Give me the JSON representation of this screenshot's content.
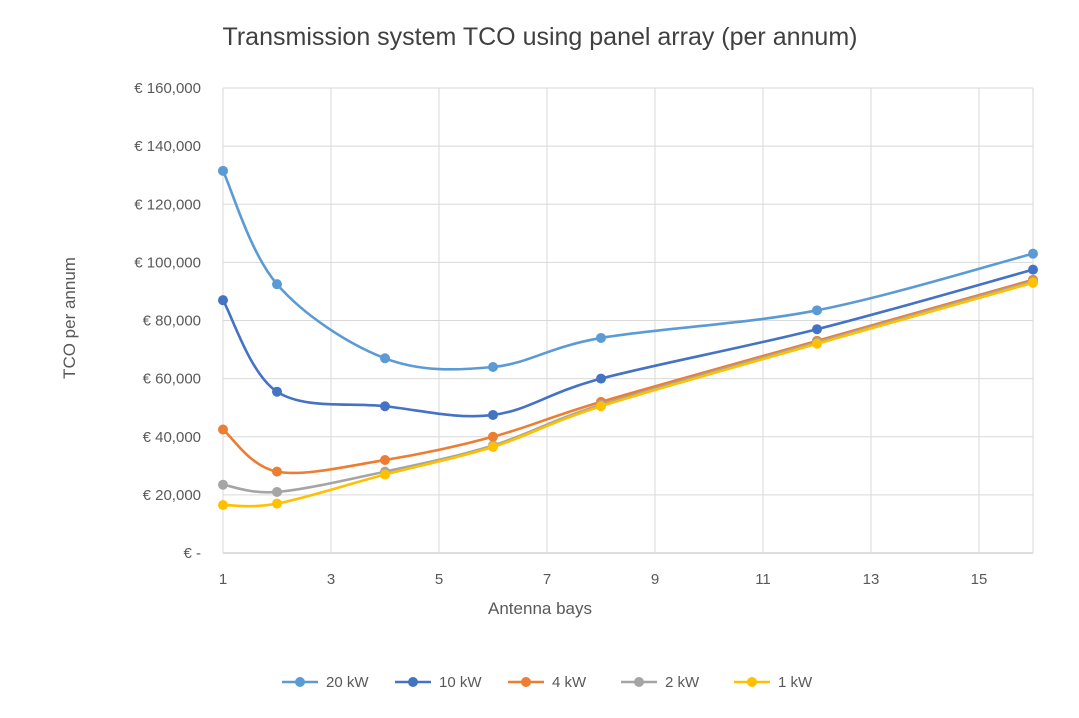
{
  "chart_data": {
    "type": "line",
    "title": "Transmission system TCO using panel array (per annum)",
    "xlabel": "Antenna bays",
    "ylabel": "TCO per annum",
    "x": [
      1,
      2,
      4,
      6,
      8,
      12,
      16
    ],
    "xlim": [
      1,
      16
    ],
    "xticks": [
      1,
      3,
      5,
      7,
      9,
      11,
      13,
      15
    ],
    "ylim": [
      0,
      160000
    ],
    "yticks": [
      0,
      20000,
      40000,
      60000,
      80000,
      100000,
      120000,
      140000,
      160000
    ],
    "ytick_labels": [
      "€ -",
      "€ 20,000",
      "€ 40,000",
      "€ 60,000",
      "€ 80,000",
      "€ 100,000",
      "€ 120,000",
      "€ 140,000",
      "€ 160,000"
    ],
    "grid": true,
    "smooth": true,
    "legend_position": "bottom",
    "series": [
      {
        "name": "20 kW",
        "color": "#5b9bd5",
        "values": [
          131500,
          92500,
          67000,
          64000,
          74000,
          83500,
          103000
        ]
      },
      {
        "name": "10 kW",
        "color": "#4472c4",
        "values": [
          87000,
          55500,
          50500,
          47500,
          60000,
          77000,
          97500
        ]
      },
      {
        "name": "4 kW",
        "color": "#ed7d31",
        "values": [
          42500,
          28000,
          32000,
          40000,
          52000,
          73000,
          94000
        ]
      },
      {
        "name": "2 kW",
        "color": "#a5a5a5",
        "values": [
          23500,
          21000,
          28000,
          37000,
          51000,
          72500,
          93500
        ]
      },
      {
        "name": "1 kW",
        "color": "#ffc000",
        "values": [
          16500,
          17000,
          27000,
          36500,
          50500,
          72000,
          93000
        ]
      }
    ]
  }
}
